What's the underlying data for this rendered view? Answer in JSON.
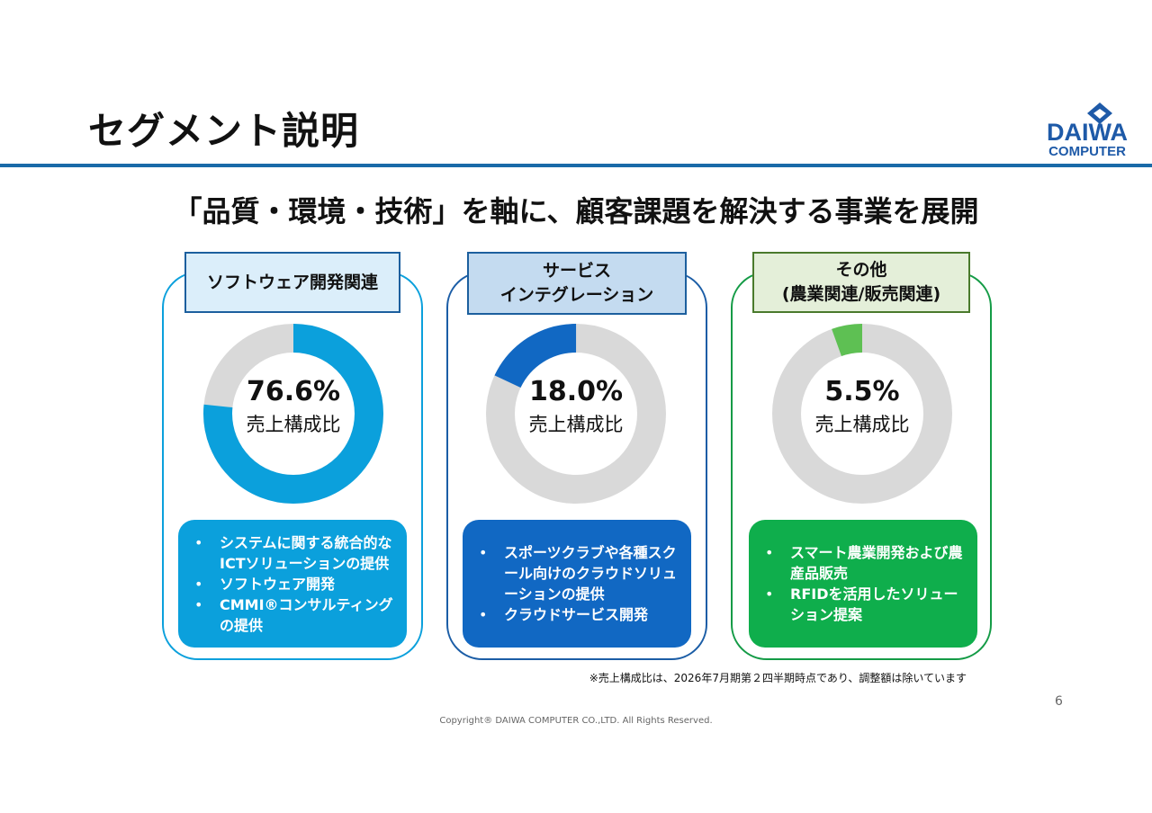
{
  "slide": {
    "title": "セグメント説明",
    "subtitle": "「品質・環境・技術」を軸に、顧客課題を解決する事業を展開",
    "logo": {
      "line1": "DAIWA",
      "line2": "COMPUTER"
    },
    "note": "※売上構成比は、2026年7月期第２四半期時点であり、調整額は除いています",
    "page_number": "6",
    "copyright": "Copyright® DAIWA COMPUTER CO.,LTD. All Rights Reserved."
  },
  "colors": {
    "software": "#0ba0dc",
    "service": "#1168c3",
    "other": "#0fae4c",
    "other_arc": "#5ec053",
    "track": "#d9d9d9"
  },
  "segments": [
    {
      "label_lines": [
        "ソフトウェア開発関連"
      ],
      "percent": 76.6,
      "percent_text": "76.6%",
      "ratio_label": "売上構成比",
      "bullets": [
        "システムに関する統合的なICTソリューションの提供",
        "ソフトウェア開発",
        "CMMI®コンサルティングの提供"
      ]
    },
    {
      "label_lines": [
        "サービス",
        "インテグレーション"
      ],
      "percent": 18.0,
      "percent_text": "18.0%",
      "ratio_label": "売上構成比",
      "bullets": [
        "スポーツクラブや各種スクール向けのクラウドソリューションの提供",
        "クラウドサービス開発"
      ]
    },
    {
      "label_lines": [
        "その他",
        "(農業関連/販売関連)"
      ],
      "percent": 5.5,
      "percent_text": "5.5%",
      "ratio_label": "売上構成比",
      "bullets": [
        "スマート農業開発および農産品販売",
        "RFIDを活用したソリューション提案"
      ]
    }
  ]
}
